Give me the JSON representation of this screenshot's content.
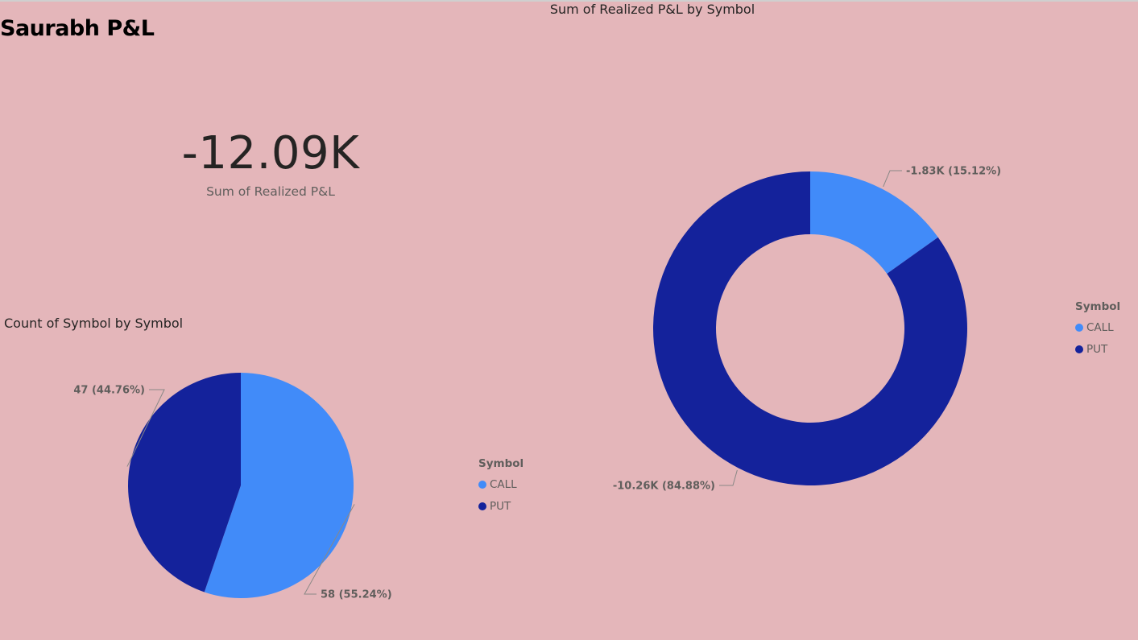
{
  "report": {
    "title": "Saurabh P&L"
  },
  "card": {
    "value": "-12.09K",
    "label": "Sum of Realized P&L"
  },
  "colors": {
    "background": "#e4b6ba",
    "CALL": "#418bf9",
    "PUT": "#14229b"
  },
  "chart_data": [
    {
      "type": "donut",
      "title": "Sum of Realized P&L by Symbol",
      "legend_title": "Symbol",
      "legend_position": "right",
      "categories": [
        "CALL",
        "PUT"
      ],
      "values": [
        -1830,
        -10260
      ],
      "percentages": [
        15.12,
        84.88
      ],
      "labels": [
        "-1.83K (15.12%)",
        "-10.26K (84.88%)"
      ]
    },
    {
      "type": "pie",
      "title": "Count of Symbol by Symbol",
      "legend_title": "Symbol",
      "legend_position": "right",
      "categories": [
        "CALL",
        "PUT"
      ],
      "values": [
        58,
        47
      ],
      "percentages": [
        55.24,
        44.76
      ],
      "labels": [
        "58 (55.24%)",
        "47 (44.76%)"
      ]
    }
  ]
}
